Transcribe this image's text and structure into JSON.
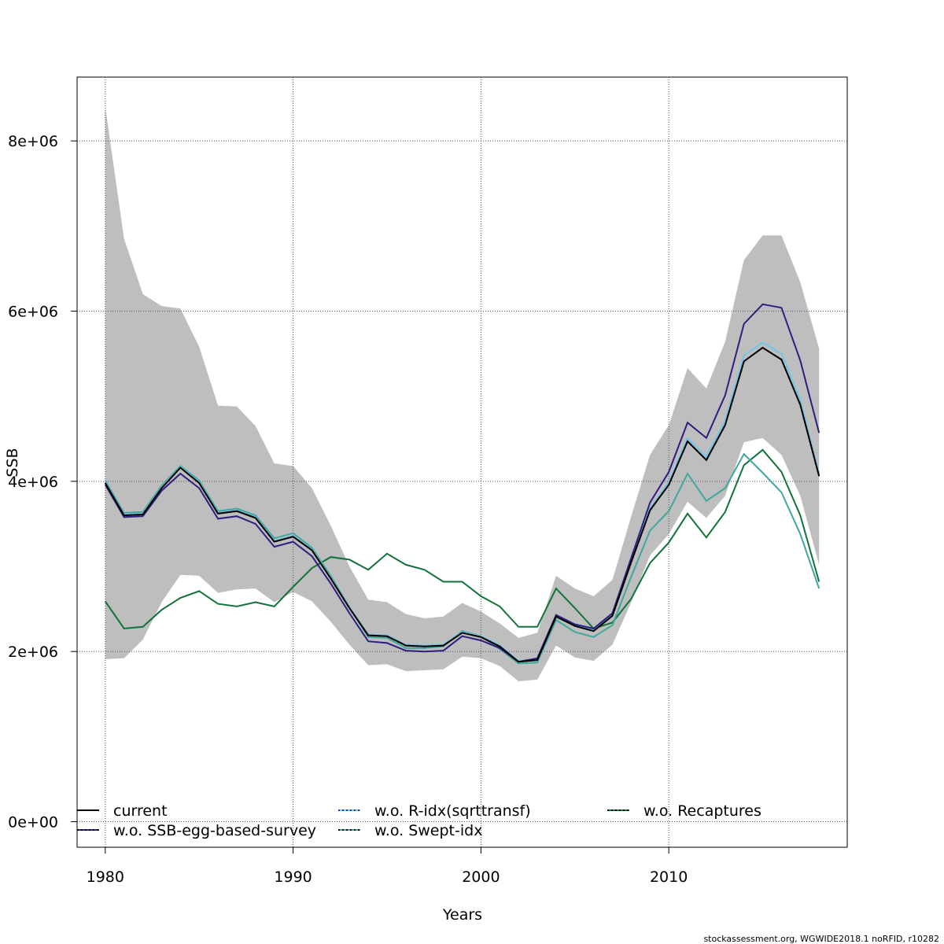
{
  "chart_data": {
    "type": "line",
    "xlabel": "Years",
    "ylabel": "SSB",
    "xlim": [
      1978.5,
      2019.5
    ],
    "ylim": [
      -300000,
      8750000
    ],
    "x_ticks": [
      1980,
      1990,
      2000,
      2010
    ],
    "x_tick_labels": [
      "1980",
      "1990",
      "2000",
      "2010"
    ],
    "y_ticks": [
      0,
      2000000,
      4000000,
      6000000,
      8000000
    ],
    "y_tick_labels": [
      "0e+00",
      "2e+06",
      "4e+06",
      "6e+06",
      "8e+06"
    ],
    "grid": true,
    "legend_position": "bottom",
    "x": [
      1980,
      1981,
      1982,
      1983,
      1984,
      1985,
      1986,
      1987,
      1988,
      1989,
      1990,
      1991,
      1992,
      1993,
      1994,
      1995,
      1996,
      1997,
      1998,
      1999,
      2000,
      2001,
      2002,
      2003,
      2004,
      2005,
      2006,
      2007,
      2008,
      2009,
      2010,
      2011,
      2012,
      2013,
      2014,
      2015,
      2016,
      2017,
      2018
    ],
    "band": {
      "color": "#bebebe",
      "upper": [
        8400000,
        6850000,
        6200000,
        6060000,
        6030000,
        5580000,
        4890000,
        4880000,
        4650000,
        4210000,
        4180000,
        3920000,
        3480000,
        3000000,
        2610000,
        2580000,
        2440000,
        2390000,
        2410000,
        2570000,
        2470000,
        2330000,
        2160000,
        2220000,
        2890000,
        2740000,
        2650000,
        2840000,
        3590000,
        4310000,
        4660000,
        5330000,
        5090000,
        5640000,
        6600000,
        6890000,
        6890000,
        6340000,
        5560000
      ],
      "lower": [
        1910000,
        1920000,
        2140000,
        2580000,
        2900000,
        2890000,
        2690000,
        2730000,
        2740000,
        2580000,
        2700000,
        2590000,
        2350000,
        2080000,
        1840000,
        1850000,
        1770000,
        1780000,
        1790000,
        1940000,
        1920000,
        1830000,
        1650000,
        1670000,
        2070000,
        1930000,
        1890000,
        2080000,
        2580000,
        3130000,
        3380000,
        3760000,
        3570000,
        3830000,
        4460000,
        4510000,
        4310000,
        3830000,
        3020000
      ]
    },
    "series": [
      {
        "name": "current",
        "color": "#000000",
        "dash": "none",
        "values": [
          3980000,
          3600000,
          3610000,
          3920000,
          4160000,
          3980000,
          3620000,
          3650000,
          3570000,
          3290000,
          3350000,
          3190000,
          2860000,
          2510000,
          2190000,
          2180000,
          2070000,
          2060000,
          2070000,
          2220000,
          2170000,
          2060000,
          1880000,
          1900000,
          2410000,
          2300000,
          2240000,
          2420000,
          3050000,
          3660000,
          3960000,
          4470000,
          4250000,
          4660000,
          5410000,
          5570000,
          5430000,
          4900000,
          4060000
        ]
      },
      {
        "name": "w.o. SSB-egg-based-survey",
        "color": "#2e1e7f",
        "dash": "none",
        "values": [
          3960000,
          3580000,
          3590000,
          3890000,
          4090000,
          3920000,
          3560000,
          3590000,
          3500000,
          3230000,
          3290000,
          3120000,
          2800000,
          2450000,
          2120000,
          2100000,
          2010000,
          2000000,
          2010000,
          2180000,
          2130000,
          2040000,
          1880000,
          1920000,
          2430000,
          2320000,
          2270000,
          2450000,
          3100000,
          3750000,
          4110000,
          4690000,
          4510000,
          5010000,
          5850000,
          6080000,
          6040000,
          5420000,
          4570000
        ]
      },
      {
        "name": "w.o. R-idx(sqrttransf)",
        "color": "#6fc6ea",
        "dash": "4,3",
        "values": [
          3990000,
          3610000,
          3620000,
          3930000,
          4170000,
          3990000,
          3630000,
          3660000,
          3580000,
          3300000,
          3360000,
          3200000,
          2870000,
          2520000,
          2200000,
          2190000,
          2080000,
          2070000,
          2080000,
          2230000,
          2180000,
          2070000,
          1890000,
          1910000,
          2420000,
          2310000,
          2250000,
          2430000,
          3070000,
          3680000,
          3990000,
          4510000,
          4290000,
          4710000,
          5480000,
          5630000,
          5500000,
          4960000,
          4080000
        ]
      },
      {
        "name": "w.o. Swept-idx",
        "color": "#3fa89c",
        "dash": "none",
        "values": [
          4010000,
          3630000,
          3640000,
          3950000,
          4180000,
          4010000,
          3650000,
          3680000,
          3600000,
          3330000,
          3390000,
          3220000,
          2890000,
          2520000,
          2170000,
          2160000,
          2040000,
          2040000,
          2060000,
          2240000,
          2180000,
          2030000,
          1860000,
          1870000,
          2370000,
          2230000,
          2170000,
          2310000,
          2880000,
          3420000,
          3650000,
          4090000,
          3770000,
          3920000,
          4320000,
          4100000,
          3870000,
          3380000,
          2740000
        ]
      },
      {
        "name": "w.o. Recaptures",
        "color": "#11723a",
        "dash": "none",
        "values": [
          2590000,
          2270000,
          2290000,
          2490000,
          2630000,
          2710000,
          2560000,
          2530000,
          2580000,
          2530000,
          2760000,
          2980000,
          3110000,
          3080000,
          2960000,
          3150000,
          3020000,
          2960000,
          2820000,
          2820000,
          2650000,
          2530000,
          2290000,
          2290000,
          2740000,
          2510000,
          2270000,
          2340000,
          2620000,
          3040000,
          3280000,
          3620000,
          3340000,
          3640000,
          4190000,
          4370000,
          4110000,
          3600000,
          2820000
        ]
      }
    ]
  },
  "footer_text": "stockassessment.org, WGWIDE2018.1  noRFID, r10282"
}
